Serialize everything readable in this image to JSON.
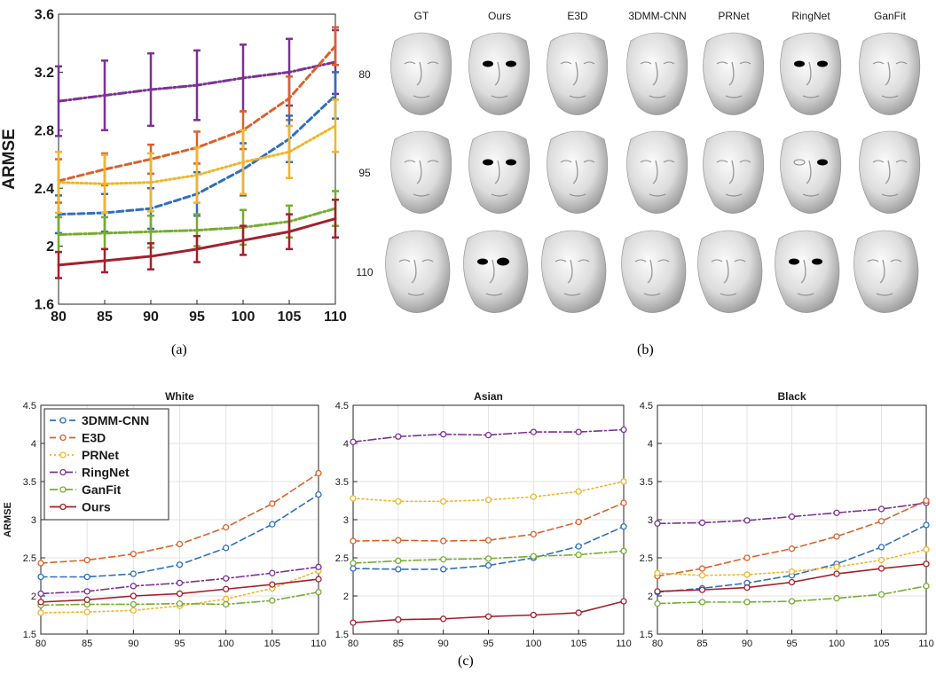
{
  "captions": {
    "a": "(a)",
    "b": "(b)",
    "c": "(c)"
  },
  "colors": {
    "3DMM-CNN": "#2f6fbf",
    "E3D": "#d9622b",
    "PRNet": "#f0b52a",
    "RingNet": "#7b3294",
    "GanFit": "#77ac30",
    "Ours": "#a3202e"
  },
  "chart_data": [
    {
      "type": "line",
      "ylabel": "ARMSE",
      "xlabel": "",
      "title": "",
      "x": [
        80,
        85,
        90,
        95,
        100,
        105,
        110
      ],
      "xlim": [
        80,
        110
      ],
      "ylim": [
        1.6,
        3.6
      ],
      "yticks": [
        1.6,
        2,
        2.4,
        2.8,
        3.2,
        3.6
      ],
      "yticklabels": [
        "1.6",
        "2",
        "2.4",
        "2.8",
        "3.2",
        "3.6"
      ],
      "error_bars": true,
      "grid": false,
      "series": [
        {
          "key": "RingNet",
          "values": [
            3.0,
            3.04,
            3.08,
            3.11,
            3.16,
            3.2,
            3.27
          ],
          "err": [
            0.24,
            0.24,
            0.25,
            0.24,
            0.23,
            0.23,
            0.22
          ]
        },
        {
          "key": "E3D",
          "values": [
            2.45,
            2.53,
            2.6,
            2.68,
            2.8,
            3.02,
            3.38
          ],
          "err": [
            0.15,
            0.11,
            0.1,
            0.11,
            0.13,
            0.15,
            0.13
          ]
        },
        {
          "key": "3DMM-CNN",
          "values": [
            2.22,
            2.23,
            2.26,
            2.36,
            2.53,
            2.74,
            3.04
          ],
          "err": [
            0.13,
            0.13,
            0.14,
            0.15,
            0.18,
            0.16,
            0.16
          ]
        },
        {
          "key": "PRNet",
          "values": [
            2.44,
            2.43,
            2.44,
            2.49,
            2.58,
            2.65,
            2.83
          ],
          "err": [
            0.21,
            0.2,
            0.2,
            0.19,
            0.22,
            0.18,
            0.18
          ]
        },
        {
          "key": "GanFit",
          "values": [
            2.08,
            2.09,
            2.1,
            2.11,
            2.13,
            2.17,
            2.26
          ],
          "err": [
            0.12,
            0.11,
            0.11,
            0.11,
            0.12,
            0.11,
            0.12
          ]
        },
        {
          "key": "Ours",
          "values": [
            1.87,
            1.9,
            1.93,
            1.98,
            2.04,
            2.1,
            2.19
          ],
          "err": [
            0.09,
            0.08,
            0.09,
            0.09,
            0.1,
            0.12,
            0.13
          ]
        }
      ]
    },
    {
      "type": "line",
      "title": "White",
      "ylabel": "ARMSE",
      "x": [
        80,
        85,
        90,
        95,
        100,
        105,
        110
      ],
      "xlim": [
        80,
        110
      ],
      "ylim": [
        1.5,
        4.5
      ],
      "yticks": [
        1.5,
        2,
        2.5,
        3,
        3.5,
        4,
        4.5
      ],
      "yticklabels": [
        "1.5",
        "2",
        "2.5",
        "3",
        "3.5",
        "4",
        "4.5"
      ],
      "grid": true,
      "legend": "top-left",
      "series": [
        {
          "key": "3DMM-CNN",
          "name": "3DMM-CNN",
          "values": [
            2.25,
            2.25,
            2.29,
            2.41,
            2.63,
            2.94,
            3.33
          ]
        },
        {
          "key": "E3D",
          "name": "E3D",
          "values": [
            2.43,
            2.47,
            2.55,
            2.68,
            2.9,
            3.21,
            3.61
          ]
        },
        {
          "key": "PRNet",
          "name": "PRNet",
          "values": [
            1.78,
            1.79,
            1.81,
            1.87,
            1.96,
            2.1,
            2.33
          ]
        },
        {
          "key": "RingNet",
          "name": "RingNet",
          "values": [
            2.03,
            2.06,
            2.13,
            2.17,
            2.23,
            2.3,
            2.38
          ]
        },
        {
          "key": "GanFit",
          "name": "GanFit",
          "values": [
            1.88,
            1.89,
            1.89,
            1.9,
            1.89,
            1.94,
            2.05
          ]
        },
        {
          "key": "Ours",
          "name": "Ours",
          "values": [
            1.92,
            1.95,
            2.0,
            2.03,
            2.09,
            2.15,
            2.22
          ]
        }
      ]
    },
    {
      "type": "line",
      "title": "Asian",
      "x": [
        80,
        85,
        90,
        95,
        100,
        105,
        110
      ],
      "xlim": [
        80,
        110
      ],
      "ylim": [
        1.5,
        4.5
      ],
      "yticks": [
        1.5,
        2,
        2.5,
        3,
        3.5,
        4,
        4.5
      ],
      "yticklabels": [
        "1.5",
        "2",
        "2.5",
        "3",
        "3.5",
        "4",
        "4.5"
      ],
      "grid": true,
      "series": [
        {
          "key": "RingNet",
          "values": [
            4.02,
            4.09,
            4.12,
            4.11,
            4.15,
            4.15,
            4.18
          ]
        },
        {
          "key": "PRNet",
          "values": [
            3.28,
            3.24,
            3.24,
            3.26,
            3.3,
            3.37,
            3.5
          ]
        },
        {
          "key": "E3D",
          "values": [
            2.72,
            2.73,
            2.72,
            2.73,
            2.81,
            2.97,
            3.22
          ]
        },
        {
          "key": "3DMM-CNN",
          "values": [
            2.36,
            2.35,
            2.35,
            2.4,
            2.5,
            2.65,
            2.91
          ]
        },
        {
          "key": "GanFit",
          "values": [
            2.43,
            2.46,
            2.48,
            2.49,
            2.52,
            2.54,
            2.59
          ]
        },
        {
          "key": "Ours",
          "values": [
            1.65,
            1.69,
            1.7,
            1.73,
            1.75,
            1.78,
            1.93
          ]
        }
      ]
    },
    {
      "type": "line",
      "title": "Black",
      "x": [
        80,
        85,
        90,
        95,
        100,
        105,
        110
      ],
      "xlim": [
        80,
        110
      ],
      "ylim": [
        1.5,
        4.5
      ],
      "yticks": [
        1.5,
        2,
        2.5,
        3,
        3.5,
        4,
        4.5
      ],
      "yticklabels": [
        "1.5",
        "2",
        "2.5",
        "3",
        "3.5",
        "4",
        "4.5"
      ],
      "grid": true,
      "series": [
        {
          "key": "RingNet",
          "values": [
            2.95,
            2.96,
            2.99,
            3.04,
            3.09,
            3.14,
            3.22
          ]
        },
        {
          "key": "E3D",
          "values": [
            2.26,
            2.36,
            2.5,
            2.62,
            2.78,
            2.98,
            3.25
          ]
        },
        {
          "key": "3DMM-CNN",
          "values": [
            2.05,
            2.1,
            2.17,
            2.27,
            2.42,
            2.64,
            2.93
          ]
        },
        {
          "key": "PRNet",
          "values": [
            2.3,
            2.27,
            2.28,
            2.32,
            2.38,
            2.47,
            2.61
          ]
        },
        {
          "key": "Ours",
          "values": [
            2.06,
            2.08,
            2.11,
            2.18,
            2.29,
            2.36,
            2.42
          ]
        },
        {
          "key": "GanFit",
          "values": [
            1.9,
            1.92,
            1.92,
            1.93,
            1.97,
            2.02,
            2.13
          ]
        }
      ]
    }
  ],
  "face_grid": {
    "columns": [
      "GT",
      "Ours",
      "E3D",
      "3DMM-CNN",
      "PRNet",
      "RingNet",
      "GanFit"
    ],
    "rows": [
      "80",
      "95",
      "110"
    ]
  }
}
